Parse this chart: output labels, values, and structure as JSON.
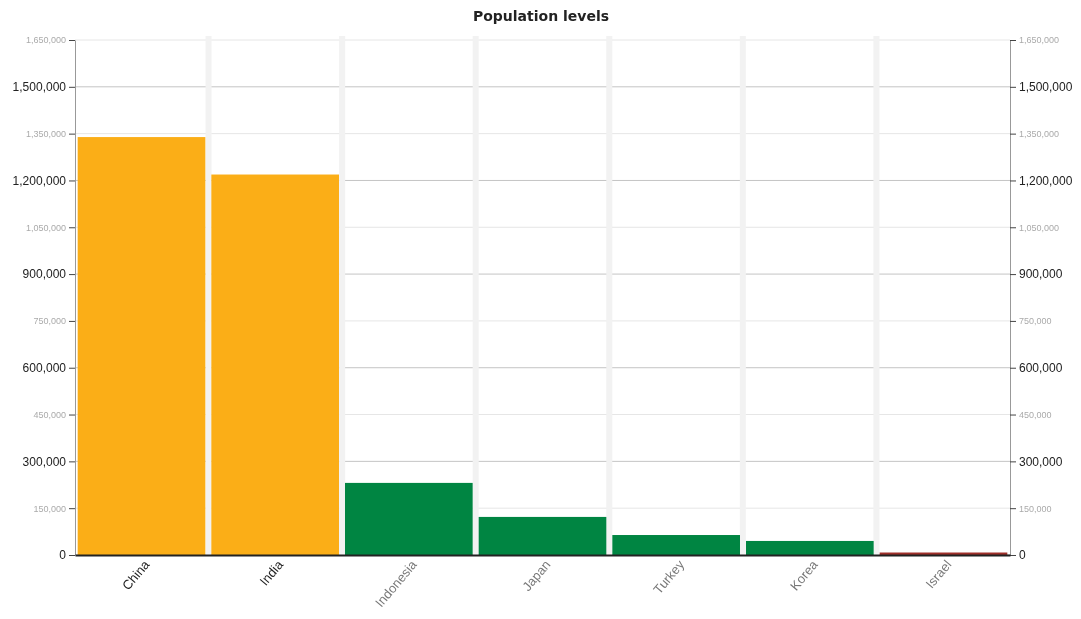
{
  "chart_data": {
    "type": "bar",
    "title": "Population levels",
    "categories": [
      "China",
      "India",
      "Indonesia",
      "Japan",
      "Turkey",
      "Korea",
      "Israel"
    ],
    "values": [
      1339000,
      1219000,
      231000,
      122000,
      64000,
      45000,
      8000
    ],
    "colors": [
      "#fbae17",
      "#fbae17",
      "#008542",
      "#008542",
      "#008542",
      "#008542",
      "#a0302a"
    ],
    "ylim": [
      0,
      1650000
    ],
    "yticks": [
      {
        "value": 0,
        "label": "0"
      },
      {
        "value": 150000,
        "label": "150,000"
      },
      {
        "value": 300000,
        "label": "300,000"
      },
      {
        "value": 450000,
        "label": "450,000"
      },
      {
        "value": 600000,
        "label": "600,000"
      },
      {
        "value": 750000,
        "label": "750,000"
      },
      {
        "value": 900000,
        "label": "900,000"
      },
      {
        "value": 1050000,
        "label": "1,050,000"
      },
      {
        "value": 1200000,
        "label": "1,200,000"
      },
      {
        "value": 1350000,
        "label": "1,350,000"
      },
      {
        "value": 1500000,
        "label": "1,500,000"
      },
      {
        "value": 1650000,
        "label": "1,650,000"
      }
    ],
    "y2lim": [
      0,
      1650000
    ],
    "y2ticks": [
      {
        "value": 0,
        "label": "0"
      },
      {
        "value": 150000,
        "label": "150,000"
      },
      {
        "value": 300000,
        "label": "300,000"
      },
      {
        "value": 450000,
        "label": "450,000"
      },
      {
        "value": 600000,
        "label": "600,000"
      },
      {
        "value": 750000,
        "label": "750,000"
      },
      {
        "value": 900000,
        "label": "900,000"
      },
      {
        "value": 1050000,
        "label": "1,050,000"
      },
      {
        "value": 1200000,
        "label": "1,200,000"
      },
      {
        "value": 1350000,
        "label": "1,350,000"
      },
      {
        "value": 1500000,
        "label": "1,500,000"
      },
      {
        "value": 1650000,
        "label": "1,650,000"
      }
    ],
    "grid": true
  }
}
